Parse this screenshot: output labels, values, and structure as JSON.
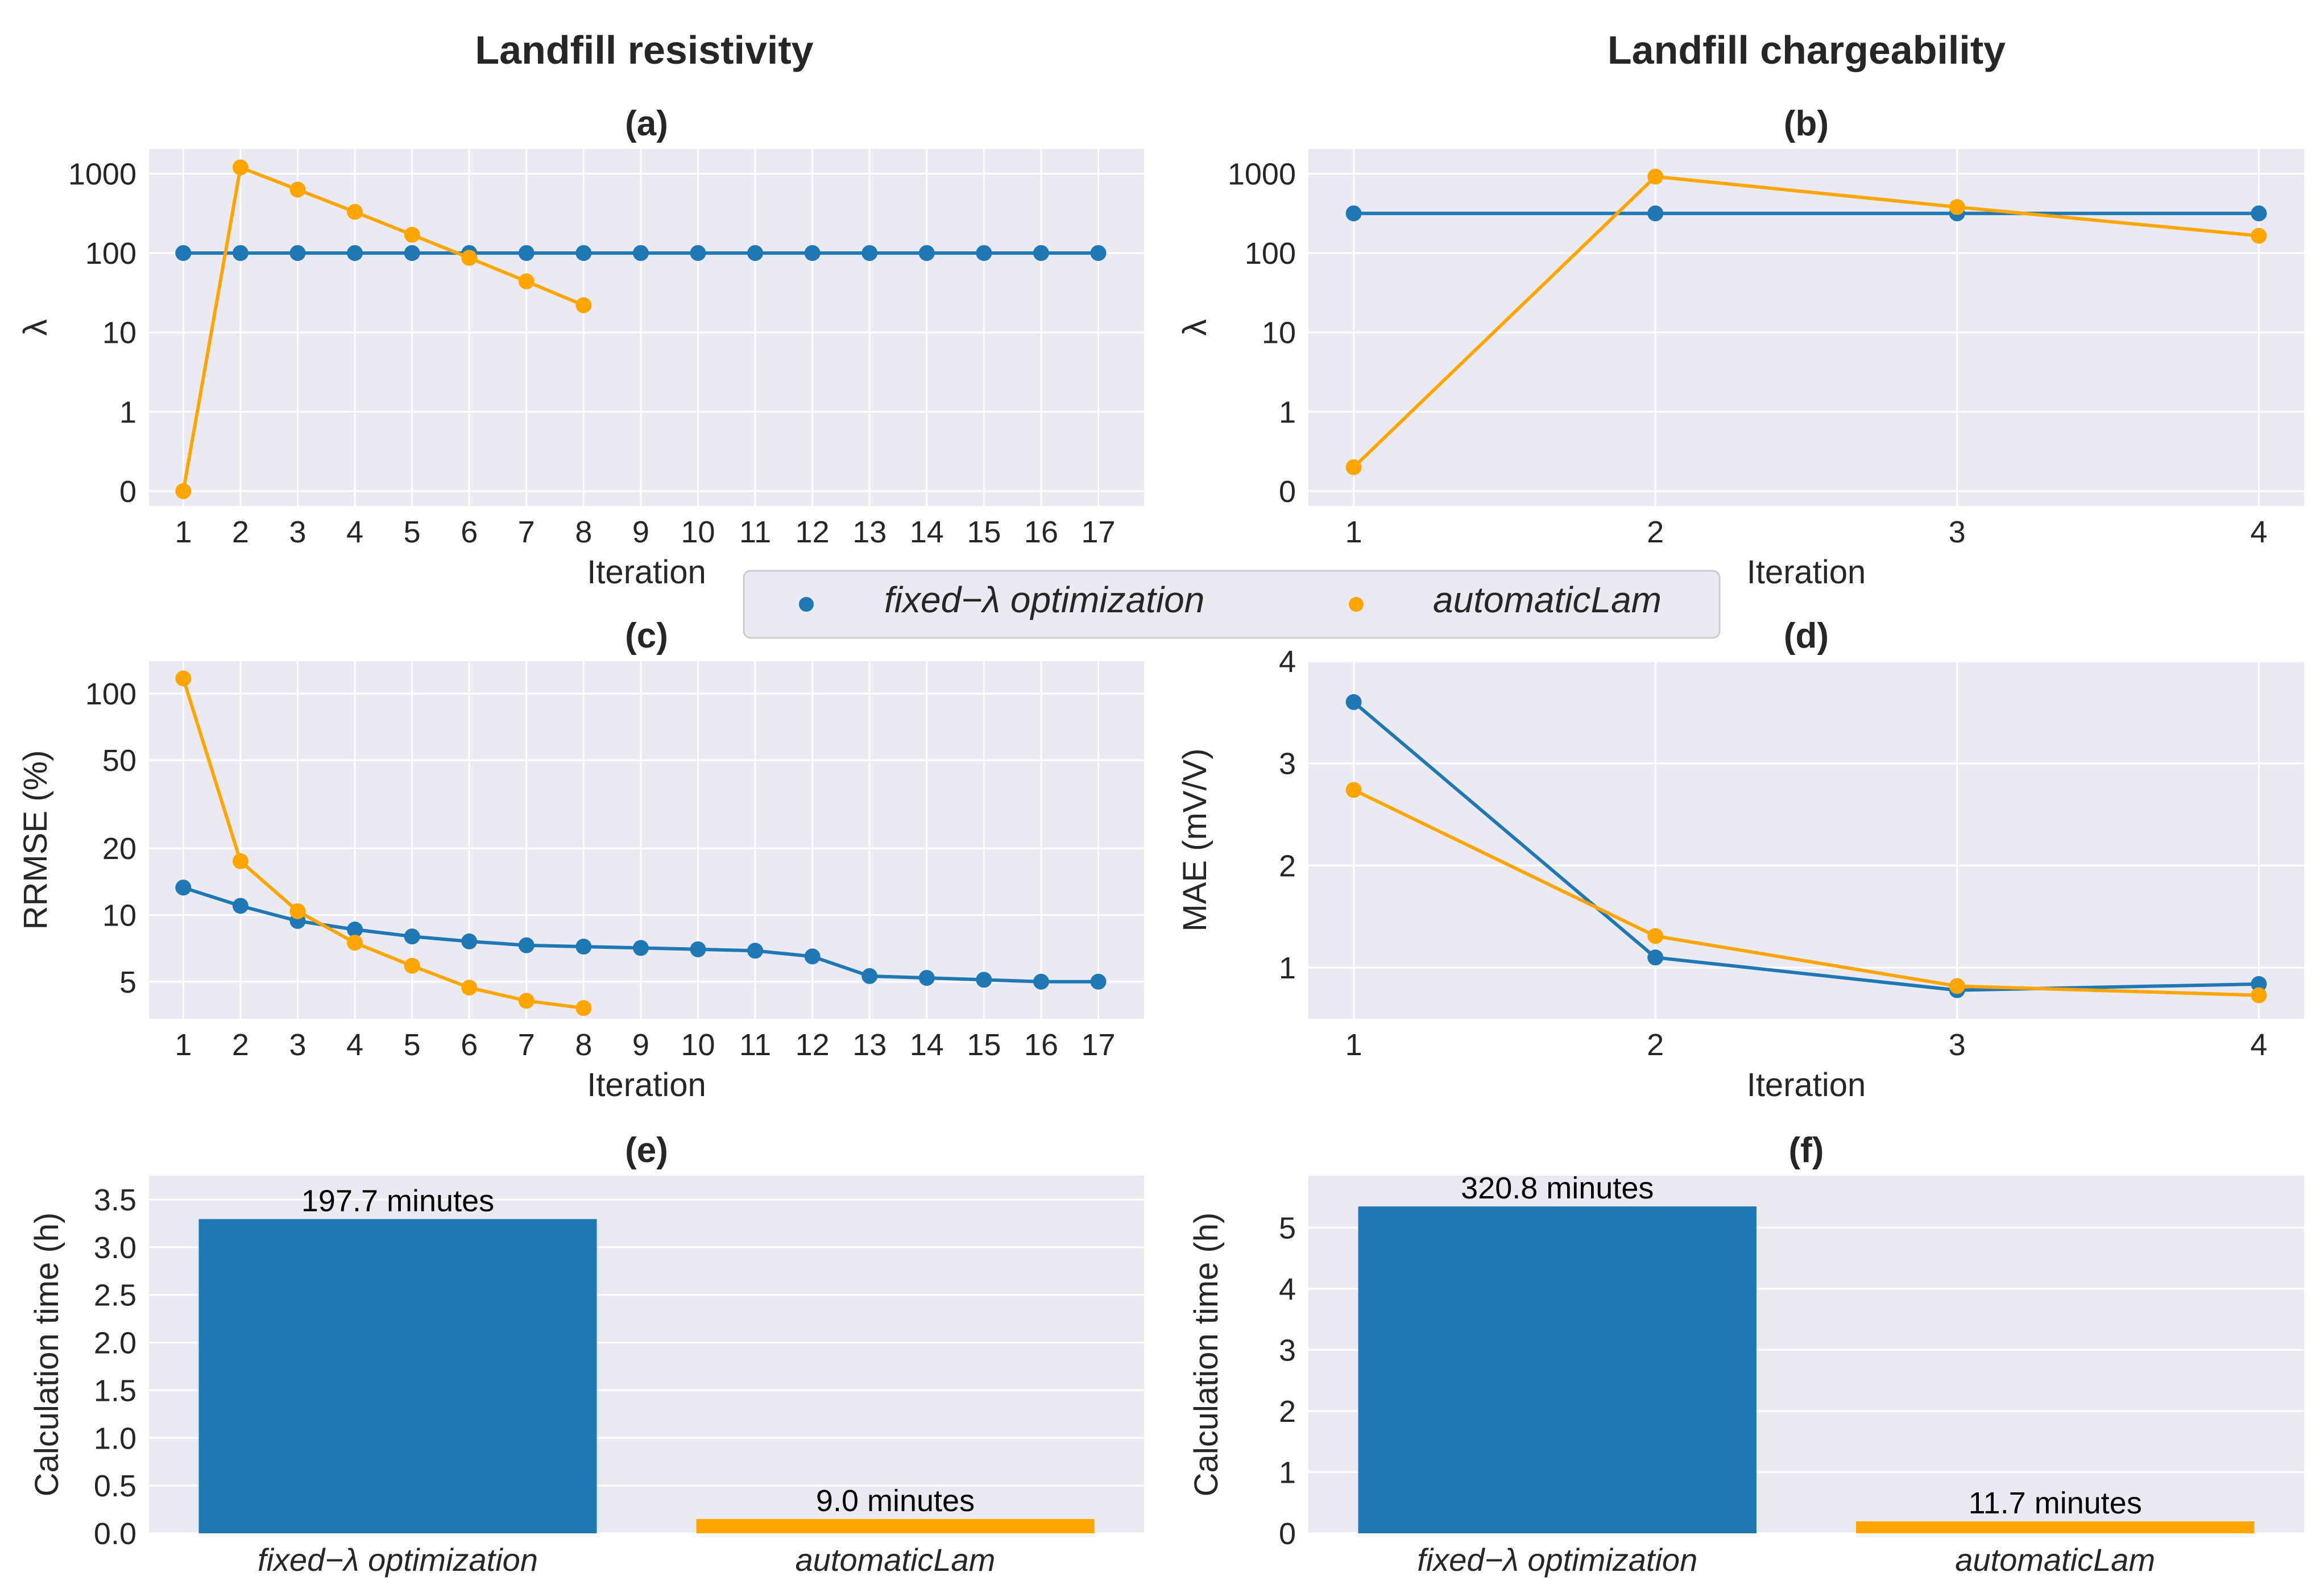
{
  "column_titles": [
    "Landfill resistivity",
    "Landfill chargeability"
  ],
  "legend": {
    "entries": [
      {
        "label": "fixed−λ optimization",
        "color": "#1f77b4"
      },
      {
        "label": "automaticLam",
        "color": "#ffa500"
      }
    ]
  },
  "chart_data": [
    {
      "id": "a",
      "panel_label": "(a)",
      "type": "line",
      "yscale": "log",
      "xlabel": "Iteration",
      "ylabel": "λ",
      "x_ticks": [
        "1",
        "2",
        "3",
        "4",
        "5",
        "6",
        "7",
        "8",
        "9",
        "10",
        "11",
        "12",
        "13",
        "14",
        "15",
        "16",
        "17"
      ],
      "y_ticks": [
        {
          "value": 0.1,
          "label": "0"
        },
        {
          "value": 1,
          "label": "1"
        },
        {
          "value": 10,
          "label": "10"
        },
        {
          "value": 100,
          "label": "100"
        },
        {
          "value": 1000,
          "label": "1000"
        }
      ],
      "xlim": [
        0.4,
        17.8
      ],
      "ylim": [
        0.065,
        2050
      ],
      "series": [
        {
          "name": "fixed−λ optimization",
          "color": "#1f77b4",
          "x": [
            1,
            2,
            3,
            4,
            5,
            6,
            7,
            8,
            9,
            10,
            11,
            12,
            13,
            14,
            15,
            16,
            17
          ],
          "y": [
            100,
            100,
            100,
            100,
            100,
            100,
            100,
            100,
            100,
            100,
            100,
            100,
            100,
            100,
            100,
            100,
            100
          ]
        },
        {
          "name": "automaticLam",
          "color": "#ffa500",
          "x": [
            1,
            2,
            3,
            4,
            5,
            6,
            7,
            8
          ],
          "y": [
            0.1,
            1200,
            630,
            330,
            170,
            87,
            44,
            22
          ]
        }
      ]
    },
    {
      "id": "b",
      "panel_label": "(b)",
      "type": "line",
      "yscale": "log",
      "xlabel": "Iteration",
      "ylabel": "λ",
      "x_ticks": [
        "1",
        "2",
        "3",
        "4"
      ],
      "y_ticks": [
        {
          "value": 0.1,
          "label": "0"
        },
        {
          "value": 1,
          "label": "1"
        },
        {
          "value": 10,
          "label": "10"
        },
        {
          "value": 100,
          "label": "100"
        },
        {
          "value": 1000,
          "label": "1000"
        }
      ],
      "xlim": [
        0.85,
        4.15
      ],
      "ylim": [
        0.065,
        2050
      ],
      "series": [
        {
          "name": "fixed−λ optimization",
          "color": "#1f77b4",
          "x": [
            1,
            2,
            3,
            4
          ],
          "y": [
            316,
            316,
            316,
            316
          ]
        },
        {
          "name": "automaticLam",
          "color": "#ffa500",
          "x": [
            1,
            2,
            3,
            4
          ],
          "y": [
            0.2,
            920,
            380,
            165
          ]
        }
      ]
    },
    {
      "id": "c",
      "panel_label": "(c)",
      "type": "line",
      "yscale": "log",
      "xlabel": "Iteration",
      "ylabel": "RRMSE (%)",
      "x_ticks": [
        "1",
        "2",
        "3",
        "4",
        "5",
        "6",
        "7",
        "8",
        "9",
        "10",
        "11",
        "12",
        "13",
        "14",
        "15",
        "16",
        "17"
      ],
      "y_ticks": [
        {
          "value": 5,
          "label": "5"
        },
        {
          "value": 10,
          "label": "10"
        },
        {
          "value": 20,
          "label": "20"
        },
        {
          "value": 50,
          "label": "50"
        },
        {
          "value": 100,
          "label": "100"
        }
      ],
      "xlim": [
        0.4,
        17.8
      ],
      "ylim": [
        3.4,
        140
      ],
      "series": [
        {
          "name": "fixed−λ optimization",
          "color": "#1f77b4",
          "x": [
            1,
            2,
            3,
            4,
            5,
            6,
            7,
            8,
            9,
            10,
            11,
            12,
            13,
            14,
            15,
            16,
            17
          ],
          "y": [
            13.3,
            11,
            9.4,
            8.6,
            8.0,
            7.6,
            7.3,
            7.2,
            7.1,
            7.0,
            6.9,
            6.5,
            5.3,
            5.2,
            5.1,
            5.0,
            5.0
          ]
        },
        {
          "name": "automaticLam",
          "color": "#ffa500",
          "x": [
            1,
            2,
            3,
            4,
            5,
            6,
            7,
            8
          ],
          "y": [
            117,
            17.5,
            10.4,
            7.5,
            5.9,
            4.7,
            4.1,
            3.8
          ]
        }
      ]
    },
    {
      "id": "d",
      "panel_label": "(d)",
      "type": "line",
      "yscale": "linear",
      "xlabel": "Iteration",
      "ylabel": "MAE (mV/V)",
      "x_ticks": [
        "1",
        "2",
        "3",
        "4"
      ],
      "y_ticks": [
        {
          "value": 1,
          "label": "1"
        },
        {
          "value": 2,
          "label": "2"
        },
        {
          "value": 3,
          "label": "3"
        },
        {
          "value": 4,
          "label": "4"
        }
      ],
      "xlim": [
        0.85,
        4.15
      ],
      "ylim": [
        0.5,
        4.0
      ],
      "series": [
        {
          "name": "fixed−λ optimization",
          "color": "#1f77b4",
          "x": [
            1,
            2,
            3,
            4
          ],
          "y": [
            3.6,
            1.1,
            0.78,
            0.84
          ]
        },
        {
          "name": "automaticLam",
          "color": "#ffa500",
          "x": [
            1,
            2,
            3,
            4
          ],
          "y": [
            2.74,
            1.31,
            0.82,
            0.73
          ]
        }
      ]
    },
    {
      "id": "e",
      "panel_label": "(e)",
      "type": "bar",
      "yscale": "linear",
      "xlabel": "",
      "ylabel": "Calculation time (h)",
      "categories": [
        "fixed−λ optimization",
        "automaticLam"
      ],
      "values": [
        3.295,
        0.15
      ],
      "colors": [
        "#1f77b4",
        "#ffa500"
      ],
      "data_labels": [
        "197.7 minutes",
        "9.0 minutes"
      ],
      "y_ticks": [
        {
          "value": 0,
          "label": "0.0"
        },
        {
          "value": 0.5,
          "label": "0.5"
        },
        {
          "value": 1,
          "label": "1.0"
        },
        {
          "value": 1.5,
          "label": "1.5"
        },
        {
          "value": 2,
          "label": "2.0"
        },
        {
          "value": 2.5,
          "label": "2.5"
        },
        {
          "value": 3,
          "label": "3.0"
        },
        {
          "value": 3.5,
          "label": "3.5"
        }
      ],
      "ylim": [
        0,
        3.75
      ]
    },
    {
      "id": "f",
      "panel_label": "(f)",
      "type": "bar",
      "yscale": "linear",
      "xlabel": "",
      "ylabel": "Calculation time (h)",
      "categories": [
        "fixed−λ optimization",
        "automaticLam"
      ],
      "values": [
        5.347,
        0.195
      ],
      "colors": [
        "#1f77b4",
        "#ffa500"
      ],
      "data_labels": [
        "320.8 minutes",
        "11.7 minutes"
      ],
      "y_ticks": [
        {
          "value": 0,
          "label": "0"
        },
        {
          "value": 1,
          "label": "1"
        },
        {
          "value": 2,
          "label": "2"
        },
        {
          "value": 3,
          "label": "3"
        },
        {
          "value": 4,
          "label": "4"
        },
        {
          "value": 5,
          "label": "5"
        }
      ],
      "ylim": [
        0,
        5.85
      ]
    }
  ]
}
